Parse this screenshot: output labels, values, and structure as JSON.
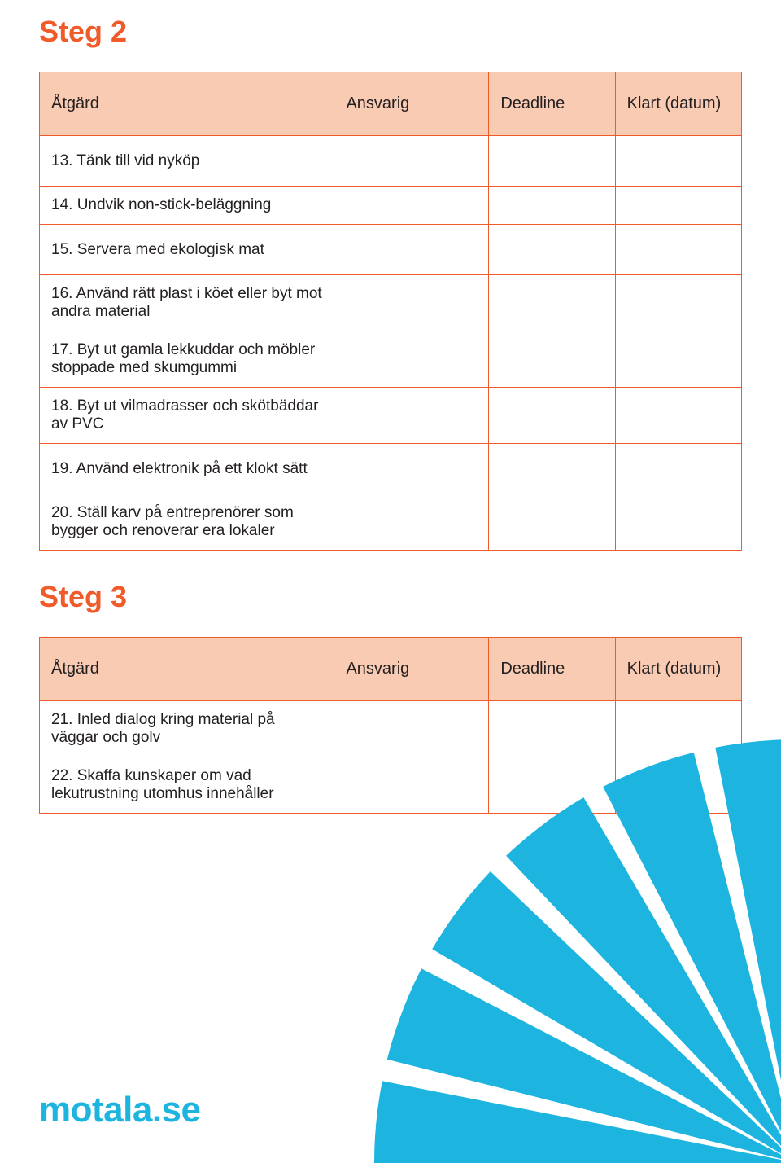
{
  "colors": {
    "heading": "#f15a29",
    "table_border": "#f15a29",
    "header_bg": "#f9cbb2",
    "header_text": "#231f20",
    "body_text": "#231f20",
    "fan_fill": "#1eb4e0",
    "logo_color": "#1eb4e0",
    "page_bg": "#ffffff"
  },
  "fonts": {
    "heading_size": 36,
    "th_size": 20,
    "td_size": 19,
    "logo_size": 44
  },
  "steg2": {
    "title": "Steg 2",
    "columns": [
      "Åtgärd",
      "Ansvarig",
      "Deadline",
      "Klart (datum)"
    ],
    "rows": [
      {
        "atgard": "13. Tänk till vid nyköp",
        "tall": true
      },
      {
        "atgard": "14. Undvik non-stick-beläggning",
        "tall": false
      },
      {
        "atgard": "15. Servera med ekologisk mat",
        "tall": true
      },
      {
        "atgard": "16. Använd rätt plast i köet eller byt mot andra material",
        "tall": false
      },
      {
        "atgard": "17. Byt ut gamla lekkuddar och möbler stoppade med skumgummi",
        "tall": false
      },
      {
        "atgard": "18. Byt ut vilmadrasser och skötbäddar av PVC",
        "tall": false
      },
      {
        "atgard": "19. Använd elektronik på ett klokt sätt",
        "tall": true
      },
      {
        "atgard": "20. Ställ karv på entreprenörer som bygger och renoverar era lokaler",
        "tall": true
      }
    ]
  },
  "steg3": {
    "title": "Steg 3",
    "columns": [
      "Åtgärd",
      "Ansvarig",
      "Deadline",
      "Klart (datum)"
    ],
    "rows": [
      {
        "atgard": "21. Inled dialog kring material på väggar och golv",
        "tall": false
      },
      {
        "atgard": "22. Skaffa kunskaper om vad lekutrustning utomhus innehåller",
        "tall": false
      }
    ]
  },
  "footer": {
    "logo_text": "motala.se"
  }
}
